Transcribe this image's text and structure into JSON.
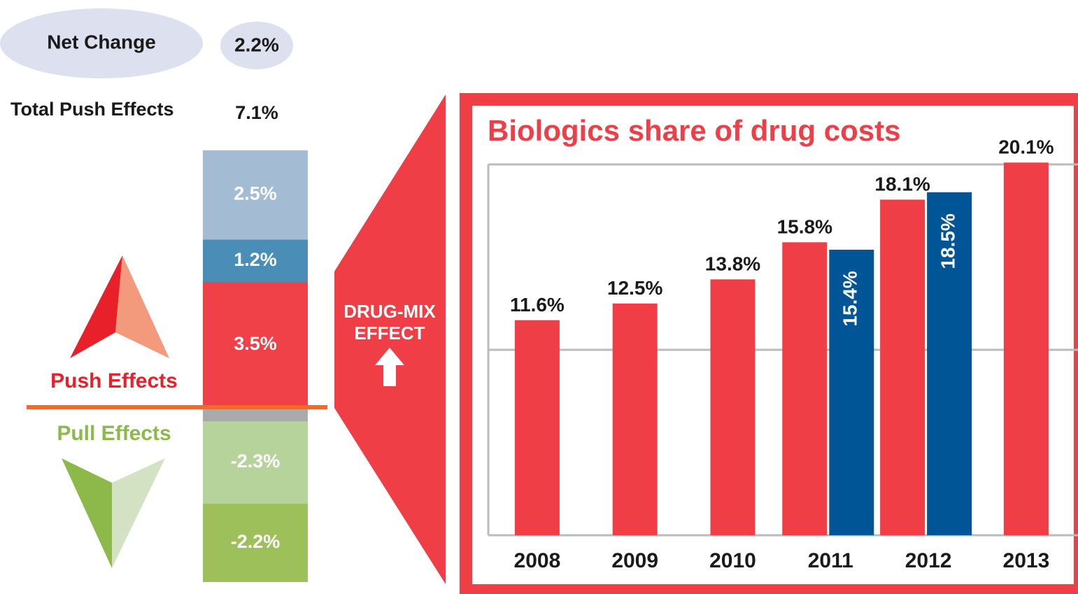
{
  "chart_data": [
    {
      "type": "stacked-column",
      "net_change_label": "Net Change",
      "net_change": "2.2%",
      "total_label": "Total Push Effects",
      "total": "7.1%",
      "push_label": "Push Effects",
      "pull_label": "Pull Effects",
      "values": [
        3.5,
        1.2,
        2.5,
        -0.4,
        -2.3,
        -2.2
      ],
      "value_labels": [
        "3.5%",
        "1.2%",
        "2.5%",
        null,
        "-2.3%",
        "-2.2%"
      ],
      "colors": [
        "#f04149",
        "#4a8db6",
        "#a3bcd3",
        "#aaaaaa",
        "#b6d39c",
        "#9dc05b"
      ],
      "ylim": [
        -5,
        7.5
      ]
    },
    {
      "type": "bar",
      "title": "Biologics  share of  drug costs",
      "callout": [
        "DRUG-MIX",
        "EFFECT"
      ],
      "categories": [
        "2008",
        "2009",
        "2010",
        "2011",
        "2012",
        "2013"
      ],
      "series": [
        {
          "color": "#ef3e46",
          "values": [
            11.6,
            12.5,
            13.8,
            15.8,
            18.1,
            20.1
          ],
          "value_labels": [
            "11.6%",
            "12.5%",
            "13.8%",
            "15.8%",
            "18.1%",
            "20.1%"
          ]
        },
        {
          "color": "#005596",
          "values": [
            null,
            null,
            null,
            15.4,
            18.5,
            null
          ],
          "value_labels": [
            null,
            null,
            null,
            "15.4%",
            "18.5%",
            null
          ]
        }
      ],
      "ylim": [
        0,
        20
      ],
      "yticks": [
        0,
        10,
        20
      ],
      "grid": true
    }
  ]
}
